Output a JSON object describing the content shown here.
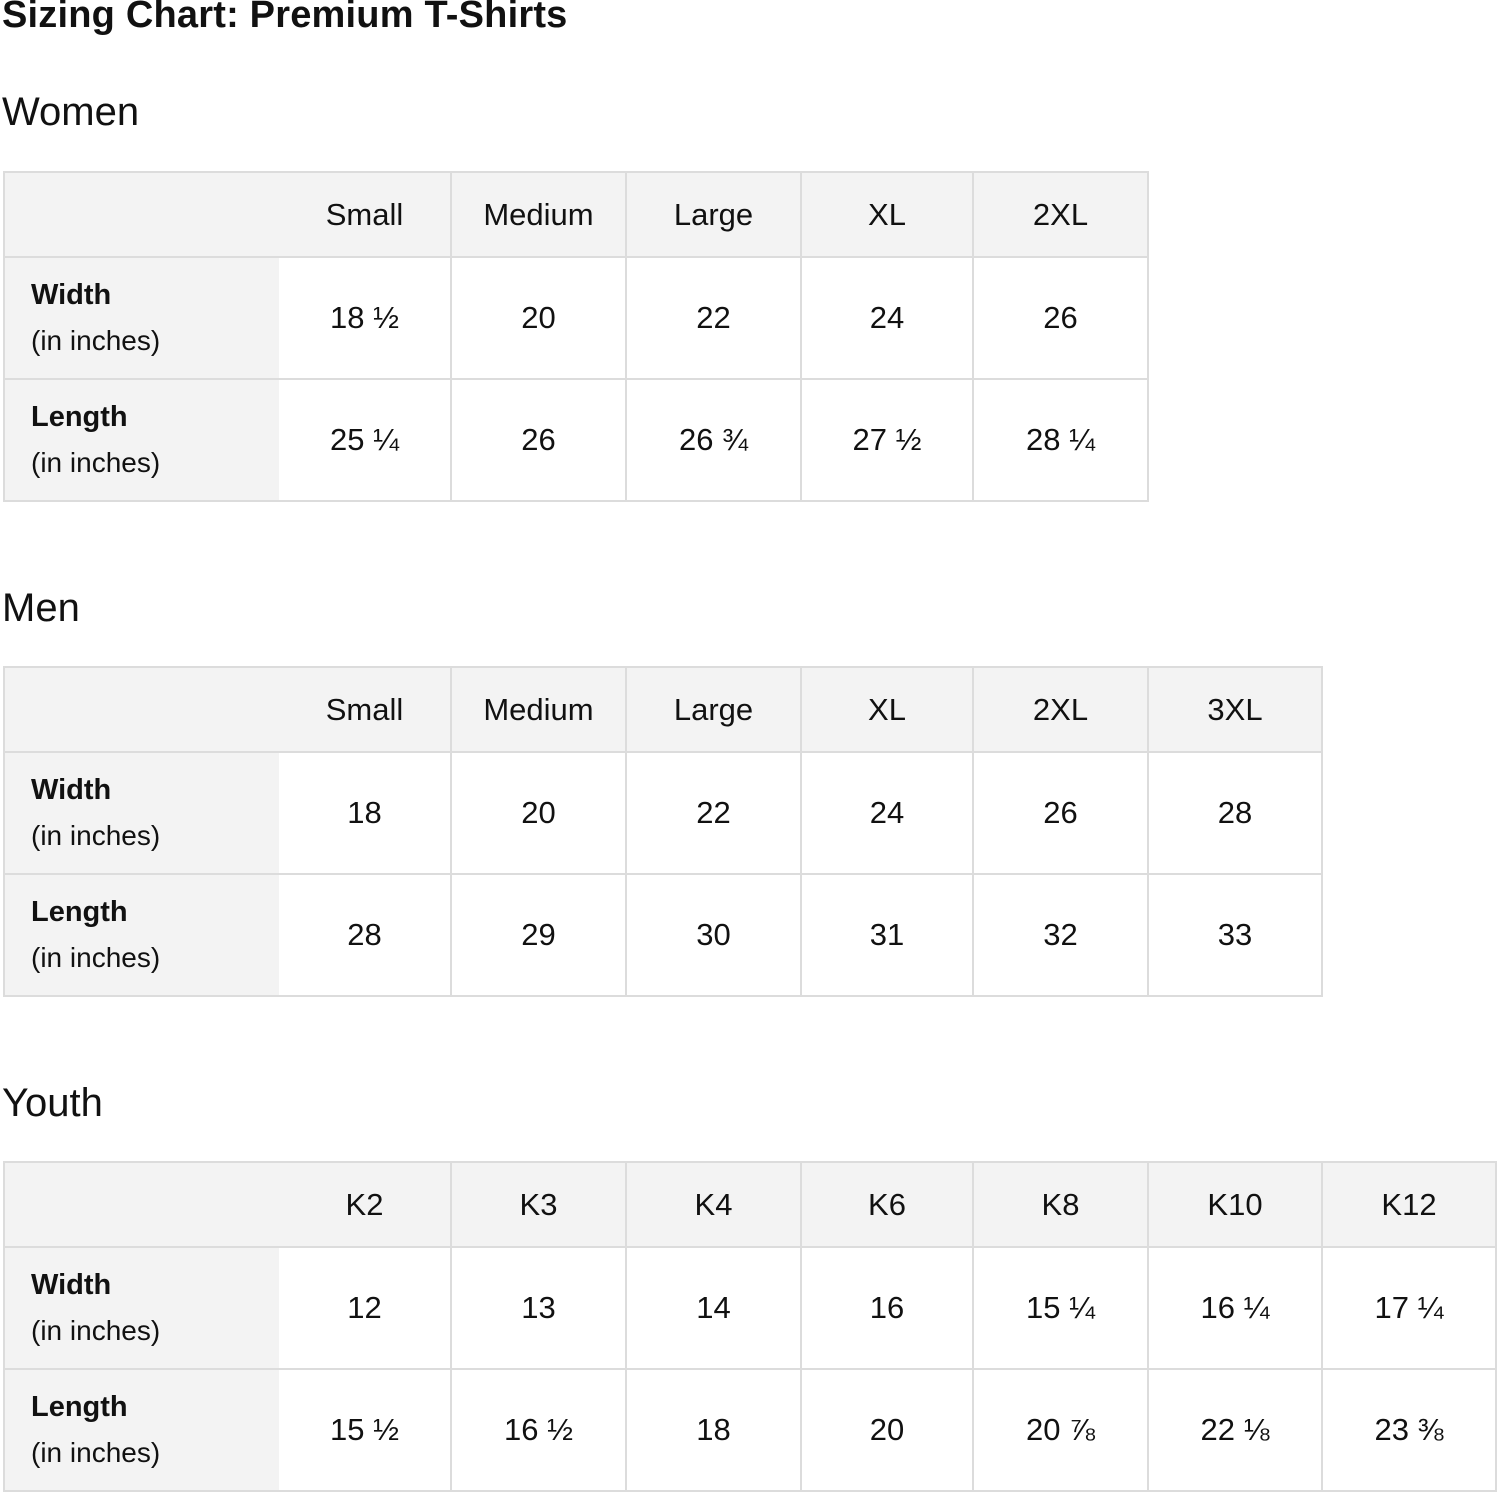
{
  "title": "Sizing Chart: Premium T-Shirts",
  "unit_label": "(in inches)",
  "tables": [
    {
      "heading": "Women",
      "sizes": [
        "Small",
        "Medium",
        "Large",
        "XL",
        "2XL"
      ],
      "rows": [
        {
          "label": "Width",
          "values": [
            "18 ½",
            "20",
            "22",
            "24",
            "26"
          ]
        },
        {
          "label": "Length",
          "values": [
            "25 ¼",
            "26",
            "26 ¾",
            "27 ½",
            "28 ¼"
          ]
        }
      ]
    },
    {
      "heading": "Men",
      "sizes": [
        "Small",
        "Medium",
        "Large",
        "XL",
        "2XL",
        "3XL"
      ],
      "rows": [
        {
          "label": "Width",
          "values": [
            "18",
            "20",
            "22",
            "24",
            "26",
            "28"
          ]
        },
        {
          "label": "Length",
          "values": [
            "28",
            "29",
            "30",
            "31",
            "32",
            "33"
          ]
        }
      ]
    },
    {
      "heading": "Youth",
      "sizes": [
        "K2",
        "K3",
        "K4",
        "K6",
        "K8",
        "K10",
        "K12"
      ],
      "rows": [
        {
          "label": "Width",
          "values": [
            "12",
            "13",
            "14",
            "16",
            "15 ¼",
            "16 ¼",
            "17 ¼"
          ]
        },
        {
          "label": "Length",
          "values": [
            "15 ½",
            "16 ½",
            "18",
            "20",
            "20 ⅞",
            "22 ⅛",
            "23 ⅜"
          ]
        }
      ]
    }
  ]
}
